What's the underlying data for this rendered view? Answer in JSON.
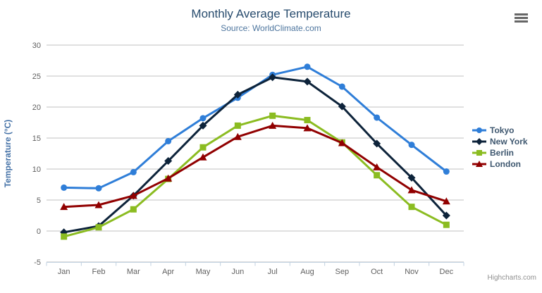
{
  "title": "Monthly Average Temperature",
  "subtitle": "Source: WorldClimate.com",
  "credits": "Highcharts.com",
  "export_menu": {
    "icon": "hamburger-icon"
  },
  "colors": {
    "title": "#274b6d",
    "subtitle": "#4d759e",
    "axis_labels": "#606060",
    "y_axis_title": "#4572A7",
    "gridline": "#C0C0C0",
    "axis_line": "#C0D0E0",
    "legend_text": "#3E576F",
    "credits_text": "#909090",
    "menu_icon": "#666666"
  },
  "chart_data": {
    "type": "line",
    "title": "Monthly Average Temperature",
    "subtitle": "Source: WorldClimate.com",
    "xlabel": "",
    "ylabel": "Temperature (°C)",
    "ylim": [
      -5,
      30
    ],
    "ytick_step": 5,
    "grid": true,
    "legend_position": "right",
    "categories": [
      "Jan",
      "Feb",
      "Mar",
      "Apr",
      "May",
      "Jun",
      "Jul",
      "Aug",
      "Sep",
      "Oct",
      "Nov",
      "Dec"
    ],
    "series": [
      {
        "name": "Tokyo",
        "color": "#2f7ed8",
        "marker": "circle",
        "values": [
          7.0,
          6.9,
          9.5,
          14.5,
          18.2,
          21.5,
          25.2,
          26.5,
          23.3,
          18.3,
          13.9,
          9.6
        ]
      },
      {
        "name": "New York",
        "color": "#0d233a",
        "marker": "diamond",
        "values": [
          -0.2,
          0.8,
          5.7,
          11.3,
          17.0,
          22.0,
          24.8,
          24.1,
          20.1,
          14.1,
          8.6,
          2.5
        ]
      },
      {
        "name": "Berlin",
        "color": "#8bbc21",
        "marker": "square",
        "values": [
          -0.9,
          0.6,
          3.5,
          8.4,
          13.5,
          17.0,
          18.6,
          17.9,
          14.3,
          9.0,
          3.9,
          1.0
        ]
      },
      {
        "name": "London",
        "color": "#910000",
        "marker": "triangle",
        "values": [
          3.9,
          4.2,
          5.7,
          8.5,
          11.9,
          15.2,
          17.0,
          16.6,
          14.2,
          10.3,
          6.6,
          4.8
        ]
      }
    ]
  }
}
